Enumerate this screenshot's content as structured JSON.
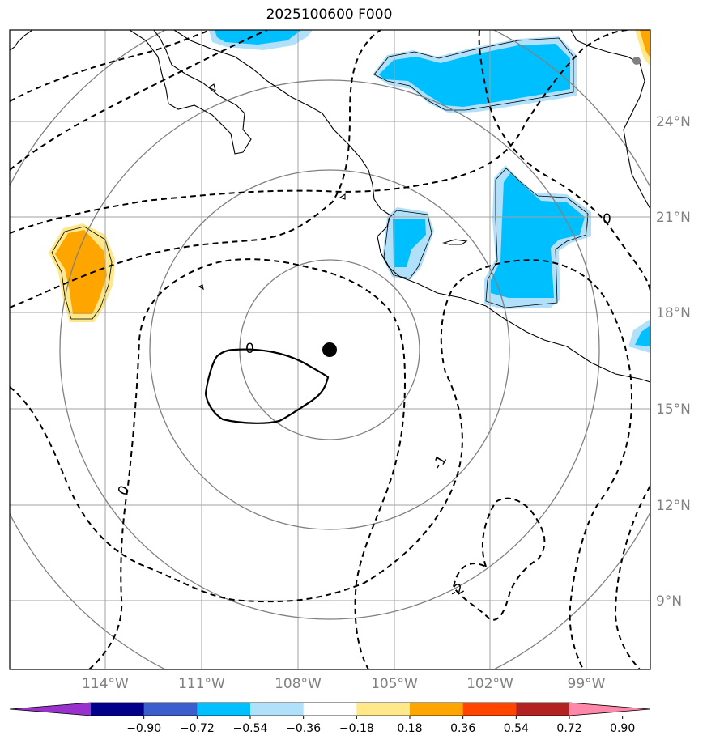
{
  "title": "2025100600 F000",
  "map": {
    "lat_labels": [
      "24°N",
      "21°N",
      "18°N",
      "15°N",
      "12°N",
      "9°N"
    ],
    "lon_labels": [
      "114°W",
      "111°W",
      "108°W",
      "105°W",
      "102°W",
      "99°W"
    ],
    "contour_labels": [
      "0",
      "0",
      "0",
      "-1",
      "-2"
    ],
    "storm_center": {
      "lat": 16.8,
      "lon": -106.9
    }
  },
  "colorbar": {
    "labels": [
      "−0.90",
      "−0.72",
      "−0.54",
      "−0.36",
      "−0.18",
      "0.18",
      "0.36",
      "0.54",
      "0.72",
      "0.90"
    ],
    "colors": [
      "#9932cc",
      "#00008b",
      "#3a5fcd",
      "#00bfff",
      "#b0e0fa",
      "#ffffff",
      "#ffe88a",
      "#ffa500",
      "#ff4500",
      "#b22222",
      "#ff88aa"
    ]
  },
  "colors": {
    "cyan": "#00bfff",
    "lightblue": "#b0e0fa",
    "orange": "#ffa500",
    "yellow": "#ffe88a",
    "grid": "#a0a0a0",
    "rings": "#808080"
  }
}
